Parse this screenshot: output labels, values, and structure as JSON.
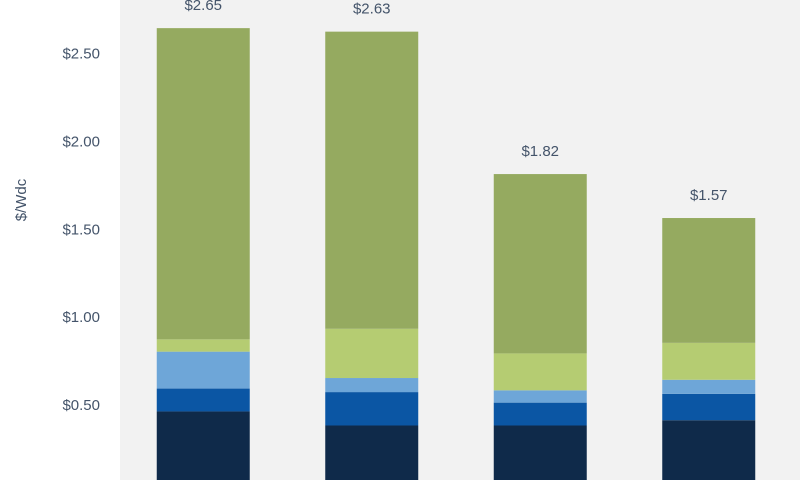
{
  "chart_data": {
    "type": "stacked-bar",
    "y_label": "$/Wdc",
    "categories": [
      null,
      null,
      null,
      null
    ],
    "series": [
      {
        "color": "#0f2a4a",
        "values": [
          0.47,
          0.39,
          0.39,
          0.42
        ]
      },
      {
        "color": "#0b56a4",
        "values": [
          0.13,
          0.19,
          0.13,
          0.15
        ]
      },
      {
        "color": "#6ea6d8",
        "values": [
          0.21,
          0.08,
          0.07,
          0.08
        ]
      },
      {
        "color": "#b5cc72",
        "values": [
          0.07,
          0.28,
          0.21,
          0.21
        ]
      },
      {
        "color": "#95aa60",
        "values": [
          1.77,
          1.69,
          1.02,
          0.71
        ]
      }
    ],
    "totals": [
      2.65,
      2.63,
      1.82,
      1.57
    ],
    "total_labels": [
      "$2.65",
      "$2.63",
      "$1.82",
      "$1.57"
    ],
    "ylim": [
      0.08,
      2.81
    ],
    "yticks": [
      {
        "value": 0.5,
        "label": "$0.50"
      },
      {
        "value": 1.0,
        "label": "$1.00"
      },
      {
        "value": 1.5,
        "label": "$1.50"
      },
      {
        "value": 2.0,
        "label": "$2.00"
      },
      {
        "value": 2.5,
        "label": "$2.50"
      }
    ]
  }
}
